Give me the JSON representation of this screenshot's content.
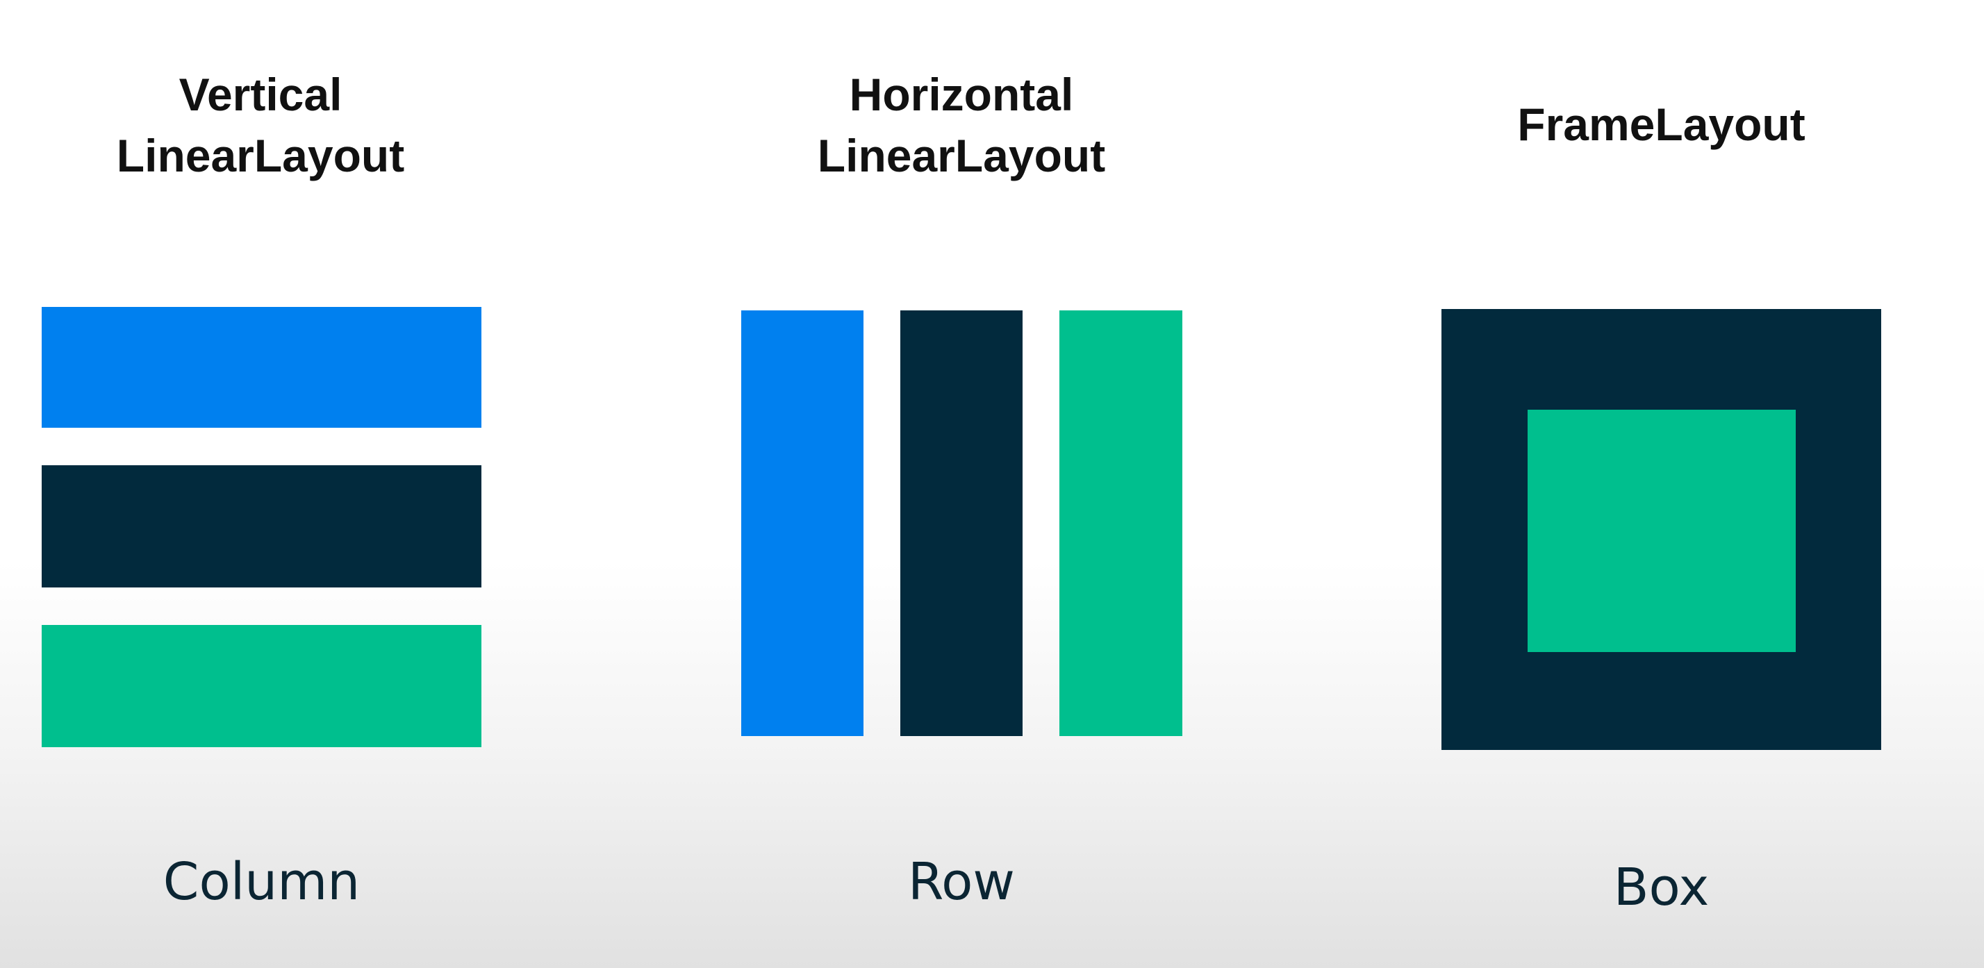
{
  "colors": {
    "blue": "#0080ef",
    "navy": "#022a3d",
    "green": "#00bf8e"
  },
  "panels": [
    {
      "title": "Vertical\nLinearLayout",
      "caption": "Column"
    },
    {
      "title": "Horizontal\nLinearLayout",
      "caption": "Row"
    },
    {
      "title": "FrameLayout",
      "caption": "Box"
    }
  ]
}
